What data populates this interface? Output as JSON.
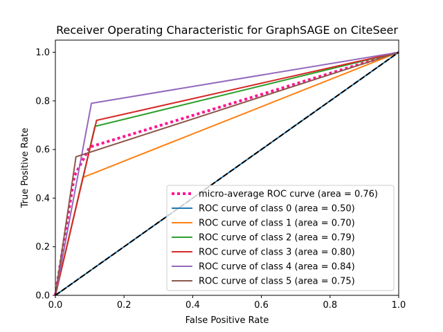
{
  "chart_data": {
    "type": "line",
    "title": "Receiver Operating Characteristic for GraphSAGE on CiteSeer",
    "xlabel": "False Positive Rate",
    "ylabel": "True Positive Rate",
    "xlim": [
      0,
      1
    ],
    "ylim": [
      0,
      1.05
    ],
    "xticks": [
      "0.0",
      "0.2",
      "0.4",
      "0.6",
      "0.8",
      "1.0"
    ],
    "yticks": [
      "0.0",
      "0.2",
      "0.4",
      "0.6",
      "0.8",
      "1.0"
    ],
    "grid": false,
    "legend_position": "lower-right",
    "diagonal": {
      "x": [
        0,
        1
      ],
      "y": [
        0,
        1
      ],
      "color": "#000000",
      "style": "dashed"
    },
    "series": [
      {
        "name": "micro-average ROC curve (area = 0.76)",
        "color": "#ff1493",
        "style": "dotted",
        "x": [
          0,
          0.055,
          0.1,
          1
        ],
        "y": [
          0,
          0.49,
          0.61,
          1
        ]
      },
      {
        "name": "ROC curve of class 0 (area = 0.50)",
        "color": "#1f77b4",
        "style": "solid",
        "x": [
          0,
          1
        ],
        "y": [
          0,
          1
        ]
      },
      {
        "name": "ROC curve of class 1 (area = 0.70)",
        "color": "#ff7f0e",
        "style": "solid",
        "x": [
          0,
          0.08,
          1
        ],
        "y": [
          0,
          0.485,
          1
        ]
      },
      {
        "name": "ROC curve of class 2 (area = 0.79)",
        "color": "#2ca02c",
        "style": "solid",
        "x": [
          0,
          0.115,
          1
        ],
        "y": [
          0,
          0.695,
          1
        ]
      },
      {
        "name": "ROC curve of class 3 (area = 0.80)",
        "color": "#d62728",
        "style": "solid",
        "x": [
          0,
          0.12,
          1
        ],
        "y": [
          0,
          0.72,
          1
        ]
      },
      {
        "name": "ROC curve of class 4 (area = 0.84)",
        "color": "#9467bd",
        "style": "solid",
        "x": [
          0,
          0.105,
          1
        ],
        "y": [
          0,
          0.79,
          1
        ]
      },
      {
        "name": "ROC curve of class 5 (area = 0.75)",
        "color": "#8c564b",
        "style": "solid",
        "x": [
          0,
          0.06,
          1
        ],
        "y": [
          0,
          0.57,
          1
        ]
      }
    ]
  }
}
